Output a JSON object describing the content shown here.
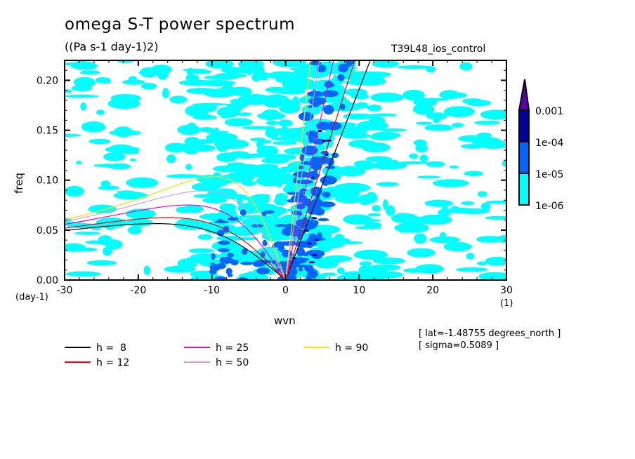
{
  "chart_data": {
    "type": "heatmap",
    "title": "omega S-T power spectrum",
    "subtitle": "((Pa s-1 day-1)2)",
    "run_label": "T39L48_ios_control",
    "xlabel": "wvn",
    "ylabel": "freq",
    "x_unit": "(1)",
    "y_unit": "(day-1)",
    "xlim": [
      -30,
      30
    ],
    "ylim": [
      0,
      0.22
    ],
    "xticks": [
      -30,
      -20,
      -10,
      0,
      10,
      20,
      30
    ],
    "xtick_labels": [
      "-30",
      "-20",
      "-10",
      "0",
      "10",
      "20",
      "30"
    ],
    "yticks": [
      0.0,
      0.05,
      0.1,
      0.15,
      0.2
    ],
    "ytick_labels": [
      "0.00",
      "0.05",
      "0.10",
      "0.15",
      "0.20"
    ],
    "colorbar": {
      "levels": [
        "1e-06",
        "1e-05",
        "1e-04",
        "0.001"
      ],
      "colors": [
        "#00ffff",
        "#0066ff",
        "#000099",
        "#5a00aa"
      ],
      "extend": "max"
    },
    "dispersion_curves": [
      {
        "name": "h =  8",
        "h": 8,
        "color": "#000000"
      },
      {
        "name": "h = 12",
        "h": 12,
        "color": "#ff0000"
      },
      {
        "name": "h = 25",
        "h": 25,
        "color": "#ff00c0"
      },
      {
        "name": "h = 50",
        "h": 50,
        "color": "#dd99dd"
      },
      {
        "name": "h = 90",
        "h": 90,
        "color": "#ffdd00"
      }
    ],
    "legend_placement": "bottom",
    "annotations": [
      "[ lat=-1.48755 degrees_north ]",
      "[ sigma=0.5089 ]"
    ]
  }
}
